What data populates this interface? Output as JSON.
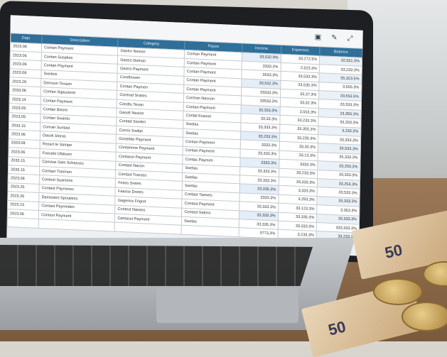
{
  "spreadsheet": {
    "columns": [
      "Date",
      "Description",
      "Category",
      "Payee",
      "Income",
      "Expenses",
      "Balance"
    ],
    "rows": [
      [
        "2023.06",
        "Contan Payment",
        "Gastro Nexion",
        "Contan Payment",
        "33,532.9%",
        "33,272.5%",
        "32,551.5%"
      ],
      [
        "2023.06",
        "Contan Suspkes",
        "Gastro Dotnon",
        "Contan Payment",
        "3333.3%",
        "2,523.3%",
        "33,233.3%"
      ],
      [
        "2023.09",
        "Contan Payment",
        "Gastro Payment",
        "Contan Payment",
        "3533.3%",
        "33,533.3%",
        "55,323.5%"
      ],
      [
        "2023.08",
        "Swnleis",
        "Condtrosen",
        "Contan Payment",
        "33,532.3%",
        "33,535.3%",
        "3,555.3%"
      ],
      [
        "2023.29",
        "Demson Texaon",
        "Contan Paymen",
        "Contan Payment",
        "33333.3%",
        "33,37.3%",
        "33,553.5%"
      ],
      [
        "2033.06",
        "Contan Sqausione",
        "Contrad Sraties",
        "Contran Nasson",
        "33533.3%",
        "33,32.3%",
        "33,533.3%"
      ],
      [
        "2023.14",
        "Contan Payment",
        "Condtu Texan",
        "Contan Payment",
        "33,333.3%",
        "3,553.3%",
        "23,355.3%"
      ],
      [
        "2023.05",
        "Contan Bixem",
        "Gaselt Nexion",
        "Contal Exason",
        "33,33.3%",
        "33,233.3%",
        "33,333.3%"
      ],
      [
        "2023.05",
        "Contan Swanto",
        "Contad Swolen",
        "Swelas",
        "33,333.3%",
        "33,355.3%",
        "3,233.3%"
      ],
      [
        "2033.15",
        "Conran Suntasl",
        "Conris Swilan",
        "Swelas",
        "33,233.3%",
        "33,235.3%",
        "33,333.3%"
      ],
      [
        "2023.06",
        "Dasoli Storas",
        "Gostelde Payment",
        "Contan Payment",
        "3333.3%",
        "33,33.3%",
        "33,533.3%"
      ],
      [
        "3333.08",
        "Rezart te Sampe",
        "Contamme Payment",
        "Contan Payment",
        "33,333.3%",
        "33,13.3%",
        "35,333.3%"
      ],
      [
        "2023.06",
        "Foesdst Ufaksen",
        "Contaest Payment",
        "Contas Paymen",
        "3333.3%",
        "3333.3%",
        "33,253.3%"
      ],
      [
        "2033.15",
        "Canstas Sam Schasses",
        "Contast Nacon",
        "Swelas",
        "33,333.3%",
        "33,233.3%",
        "33,333.3%"
      ],
      [
        "2033.15",
        "Contast Trasmen",
        "Contast Trasses",
        "Swelas",
        "33,333.3%",
        "33,333.3%",
        "33,253.3%"
      ],
      [
        "2023.08",
        "Contest Suanions",
        "Feass Sretes",
        "Swelas",
        "33,335.3%",
        "3,333.3%",
        "33,533.3%"
      ],
      [
        "2023.25",
        "Contast Payrrenss",
        "Faasse Dretes",
        "Contast Taewes",
        "3333.3%",
        "3,293.3%",
        "33,333.3%"
      ],
      [
        "2023.26",
        "Damesten Sprsaless",
        "Gagenos Frigret",
        "Contast Payment",
        "33,333.3%",
        "33,123.3%",
        "3,353.3%"
      ],
      [
        "2023.23",
        "Contast Paymndes",
        "Contest Nasass",
        "Contast Satoss",
        "33,333.3%",
        "33,335.3%",
        "33,333.3%"
      ],
      [
        "2023.06",
        "Contest Payment",
        "Cantasst Payment",
        "Swelas",
        "33,335.3%",
        "33,333.3%",
        "333,333.3%"
      ],
      [
        "",
        "",
        "",
        "",
        "3773.3%",
        "3,233.3%",
        "33,233.3%"
      ]
    ]
  },
  "bills": [
    "50",
    "50"
  ]
}
